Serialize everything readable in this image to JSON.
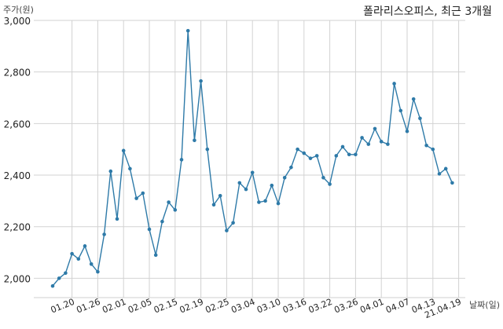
{
  "chart_data": {
    "type": "line",
    "title": "폴라리스오피스, 최근 3개월",
    "ylabel": "주가(원)",
    "xlabel": "날짜(일)",
    "ylim": [
      1925,
      3000
    ],
    "yticks": [
      2000,
      2200,
      2400,
      2600,
      2800,
      3000
    ],
    "ytick_labels": [
      "2,000",
      "2,200",
      "2,400",
      "2,600",
      "2,800",
      "3,000"
    ],
    "grid": true,
    "color": "#2e7aa8",
    "xtick_labels": [
      "01.20",
      "01.26",
      "02.01",
      "02.05",
      "02.15",
      "02.19",
      "02.25",
      "03.04",
      "03.10",
      "03.16",
      "03.22",
      "03.26",
      "04.01",
      "04.07",
      "04.13",
      "21.04.19"
    ],
    "xtick_index": [
      3,
      7,
      11,
      15,
      19,
      23,
      27,
      31,
      35,
      39,
      43,
      47,
      51,
      55,
      59,
      63
    ],
    "values": [
      1970,
      2000,
      2020,
      2095,
      2075,
      2125,
      2055,
      2025,
      2170,
      2415,
      2230,
      2495,
      2425,
      2310,
      2330,
      2190,
      2090,
      2220,
      2295,
      2265,
      2460,
      2960,
      2535,
      2765,
      2500,
      2285,
      2320,
      2185,
      2215,
      2370,
      2345,
      2410,
      2295,
      2300,
      2360,
      2290,
      2390,
      2430,
      2500,
      2485,
      2465,
      2475,
      2390,
      2365,
      2475,
      2510,
      2480,
      2480,
      2545,
      2520,
      2580,
      2530,
      2520,
      2755,
      2650,
      2570,
      2695,
      2620,
      2515,
      2500,
      2405,
      2425,
      2370
    ]
  }
}
